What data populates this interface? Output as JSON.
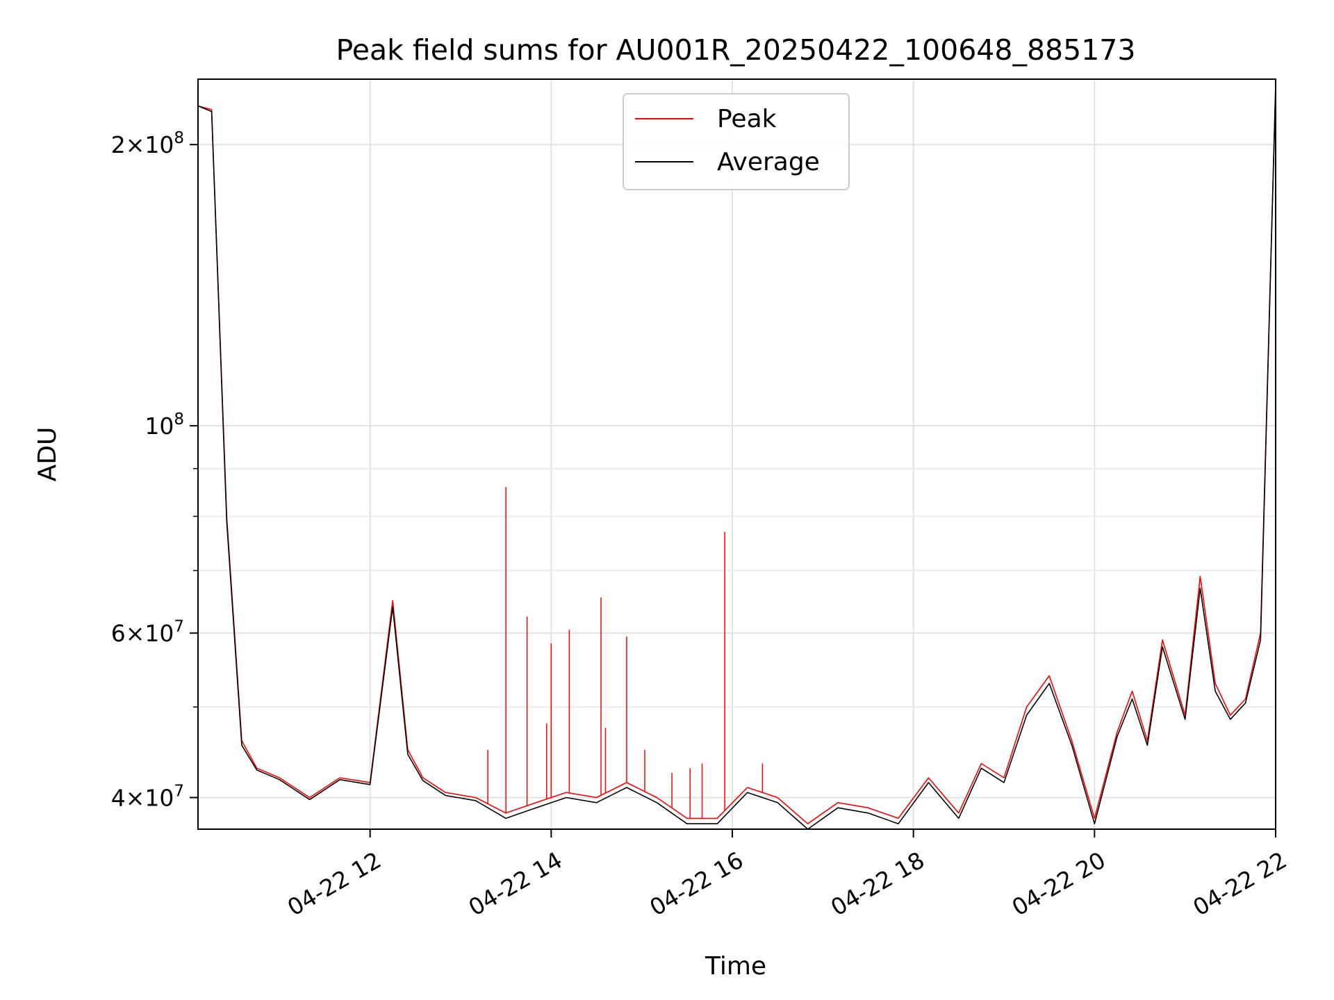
{
  "chart_data": {
    "type": "line",
    "title": "Peak field sums for AU001R_20250422_100648_885173",
    "xlabel": "Time",
    "ylabel": "ADU",
    "yscale": "log",
    "grid": true,
    "legend_position": "top-center",
    "xlim": [
      "2025-04-22 10:06",
      "2025-04-22 22:00"
    ],
    "ylim": [
      37000000,
      235000000
    ],
    "x_ticks": [
      "04-22 12",
      "04-22 14",
      "04-22 16",
      "04-22 18",
      "04-22 20",
      "04-22 22"
    ],
    "y_ticks": [
      {
        "mantissa": "4",
        "exp": "7",
        "value": 40000000
      },
      {
        "mantissa": "6",
        "exp": "7",
        "value": 60000000
      },
      {
        "mantissa": "",
        "exp": "8",
        "value": 100000000
      },
      {
        "mantissa": "2",
        "exp": "8",
        "value": 200000000
      }
    ],
    "x": [
      "2025-04-22 10:06",
      "2025-04-22 10:15",
      "2025-04-22 10:25",
      "2025-04-22 10:35",
      "2025-04-22 10:45",
      "2025-04-22 11:00",
      "2025-04-22 11:20",
      "2025-04-22 11:40",
      "2025-04-22 12:00",
      "2025-04-22 12:15",
      "2025-04-22 12:25",
      "2025-04-22 12:35",
      "2025-04-22 12:50",
      "2025-04-22 13:10",
      "2025-04-22 13:30",
      "2025-04-22 13:50",
      "2025-04-22 14:10",
      "2025-04-22 14:30",
      "2025-04-22 14:50",
      "2025-04-22 15:10",
      "2025-04-22 15:30",
      "2025-04-22 15:50",
      "2025-04-22 16:10",
      "2025-04-22 16:30",
      "2025-04-22 16:50",
      "2025-04-22 17:10",
      "2025-04-22 17:30",
      "2025-04-22 17:50",
      "2025-04-22 18:10",
      "2025-04-22 18:30",
      "2025-04-22 18:45",
      "2025-04-22 19:00",
      "2025-04-22 19:15",
      "2025-04-22 19:30",
      "2025-04-22 19:45",
      "2025-04-22 20:00",
      "2025-04-22 20:15",
      "2025-04-22 20:25",
      "2025-04-22 20:35",
      "2025-04-22 20:45",
      "2025-04-22 21:00",
      "2025-04-22 21:10",
      "2025-04-22 21:20",
      "2025-04-22 21:30",
      "2025-04-22 21:40",
      "2025-04-22 21:50",
      "2025-04-22 22:00"
    ],
    "series": [
      {
        "name": "Peak",
        "color": "#ff0000",
        "values": [
          220000000,
          218000000,
          80000000,
          46000000,
          43000000,
          42000000,
          40000000,
          42000000,
          41500000,
          65000000,
          45000000,
          42000000,
          40500000,
          40000000,
          38500000,
          39500000,
          40500000,
          40000000,
          41500000,
          40000000,
          38000000,
          38000000,
          41000000,
          40000000,
          37500000,
          39500000,
          39000000,
          38000000,
          42000000,
          38500000,
          43500000,
          42000000,
          50000000,
          54000000,
          46000000,
          38000000,
          47000000,
          52000000,
          46000000,
          59000000,
          49000000,
          69000000,
          53000000,
          49000000,
          51000000,
          60000000,
          232000000
        ]
      },
      {
        "name": "Average",
        "color": "#000000",
        "values": [
          220000000,
          217000000,
          79000000,
          45500000,
          42800000,
          41800000,
          39800000,
          41800000,
          41300000,
          64000000,
          44500000,
          41700000,
          40200000,
          39700000,
          38000000,
          39000000,
          40000000,
          39500000,
          41000000,
          39500000,
          37500000,
          37500000,
          40500000,
          39500000,
          37000000,
          39000000,
          38500000,
          37500000,
          41500000,
          38000000,
          43000000,
          41500000,
          49000000,
          53000000,
          45500000,
          37500000,
          46500000,
          51000000,
          45500000,
          58000000,
          48500000,
          67000000,
          52000000,
          48500000,
          50500000,
          59000000,
          231000000
        ]
      }
    ],
    "spikes": {
      "series": "Peak",
      "x": [
        "2025-04-22 13:18",
        "2025-04-22 13:30",
        "2025-04-22 13:44",
        "2025-04-22 13:57",
        "2025-04-22 14:00",
        "2025-04-22 14:12",
        "2025-04-22 14:33",
        "2025-04-22 14:36",
        "2025-04-22 14:50",
        "2025-04-22 15:02",
        "2025-04-22 15:20",
        "2025-04-22 15:32",
        "2025-04-22 15:40",
        "2025-04-22 15:55",
        "2025-04-22 16:20"
      ],
      "values": [
        45000000,
        86000000,
        62500000,
        48000000,
        58500000,
        60500000,
        65500000,
        47500000,
        59500000,
        45000000,
        42500000,
        43000000,
        43500000,
        77000000,
        43500000
      ]
    }
  }
}
